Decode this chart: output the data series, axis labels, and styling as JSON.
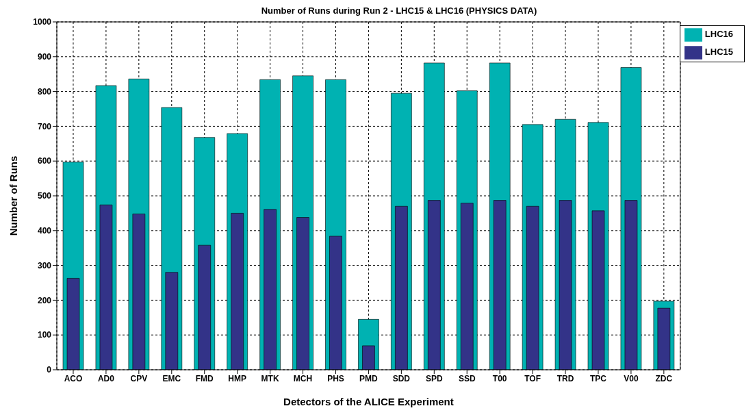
{
  "chart_data": {
    "type": "bar",
    "title": "Number of Runs during Run 2 - LHC15 & LHC16 (PHYSICS DATA)",
    "xlabel": "Detectors of the ALICE Experiment",
    "ylabel": "Number of Runs",
    "categories": [
      "ACO",
      "AD0",
      "CPV",
      "EMC",
      "FMD",
      "HMP",
      "MTK",
      "MCH",
      "PHS",
      "PMD",
      "SDD",
      "SPD",
      "SSD",
      "T00",
      "TOF",
      "TRD",
      "TPC",
      "V00",
      "ZDC"
    ],
    "series": [
      {
        "name": "LHC16",
        "color": "#00b2b2",
        "values": [
          597,
          817,
          836,
          754,
          668,
          679,
          834,
          845,
          834,
          145,
          795,
          882,
          802,
          882,
          705,
          720,
          711,
          869,
          197
        ]
      },
      {
        "name": "LHC15",
        "color": "#333388",
        "values": [
          263,
          474,
          448,
          280,
          358,
          450,
          461,
          438,
          384,
          69,
          470,
          487,
          479,
          487,
          470,
          487,
          457,
          487,
          177
        ]
      }
    ],
    "ylim": [
      0,
      1000
    ],
    "yticks": [
      0,
      100,
      200,
      300,
      400,
      500,
      600,
      700,
      800,
      900,
      1000
    ],
    "grid": true,
    "legend": "top right"
  }
}
